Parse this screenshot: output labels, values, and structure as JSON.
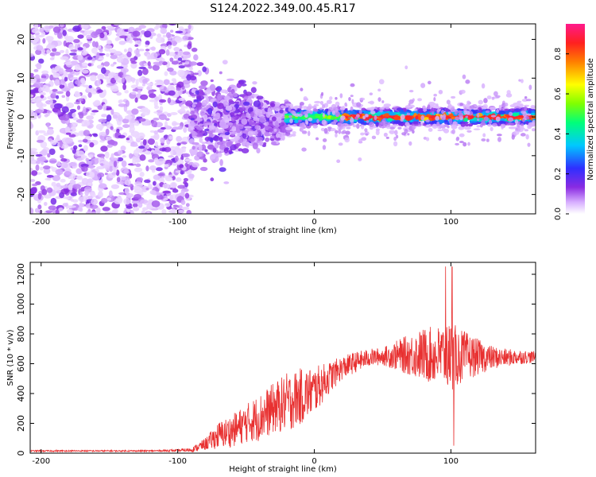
{
  "title": "S124.2022.349.00.45.R17",
  "colors": {
    "snr_line": "#e83030",
    "axis": "#000000",
    "background": "#ffffff"
  },
  "chart_data": [
    {
      "type": "heatmap",
      "title": "",
      "xlabel": "Height of straight line (km)",
      "ylabel": "Frequency (Hz)",
      "xlim": [
        -208,
        162
      ],
      "ylim": [
        -25,
        24
      ],
      "xticks": [
        -200,
        -100,
        0,
        100
      ],
      "yticks": [
        -20,
        -10,
        0,
        10,
        20
      ],
      "colorbar": {
        "label": "Normalized spectral amplitude",
        "range": [
          0,
          0.95
        ],
        "ticks": [
          0.0,
          0.2,
          0.4,
          0.6,
          0.8
        ],
        "colormap": "rainbow (white-purple-blue-cyan-green-yellow-red-pink)"
      },
      "features": [
        {
          "x_range": [
            -208,
            -90
          ],
          "description": "diffuse low-amplitude noise across full frequency band"
        },
        {
          "x_range": [
            -90,
            -20
          ],
          "description": "spread converging toward 0 Hz, amplitude ~0.1"
        },
        {
          "x_range": [
            -20,
            162
          ],
          "description": "narrow band centered near 0 Hz, amplitude up to ~0.9"
        }
      ]
    },
    {
      "type": "line",
      "title": "",
      "xlabel": "Height of straight line (km)",
      "ylabel": "SNR (10 * v/v)",
      "xlim": [
        -208,
        162
      ],
      "ylim": [
        0,
        1280
      ],
      "xticks": [
        -200,
        -100,
        0,
        100
      ],
      "yticks": [
        0,
        200,
        400,
        600,
        800,
        1000,
        1200
      ],
      "series": [
        {
          "name": "",
          "color": "#e83030",
          "x": [
            -208,
            -180,
            -150,
            -120,
            -100,
            -90,
            -80,
            -70,
            -60,
            -50,
            -40,
            -30,
            -20,
            -10,
            0,
            10,
            20,
            30,
            40,
            50,
            60,
            70,
            80,
            90,
            100,
            110,
            120,
            130,
            140,
            150,
            160
          ],
          "y": [
            15,
            15,
            15,
            15,
            18,
            22,
            60,
            120,
            150,
            200,
            240,
            300,
            340,
            380,
            420,
            500,
            570,
            610,
            640,
            650,
            655,
            660,
            660,
            655,
            650,
            650,
            645,
            640,
            640,
            645,
            645
          ],
          "noise_amplitude": [
            5,
            5,
            5,
            5,
            8,
            15,
            40,
            90,
            110,
            130,
            160,
            170,
            200,
            190,
            160,
            110,
            80,
            70,
            60,
            60,
            100,
            140,
            180,
            200,
            230,
            170,
            120,
            80,
            60,
            50,
            40
          ]
        }
      ]
    }
  ]
}
